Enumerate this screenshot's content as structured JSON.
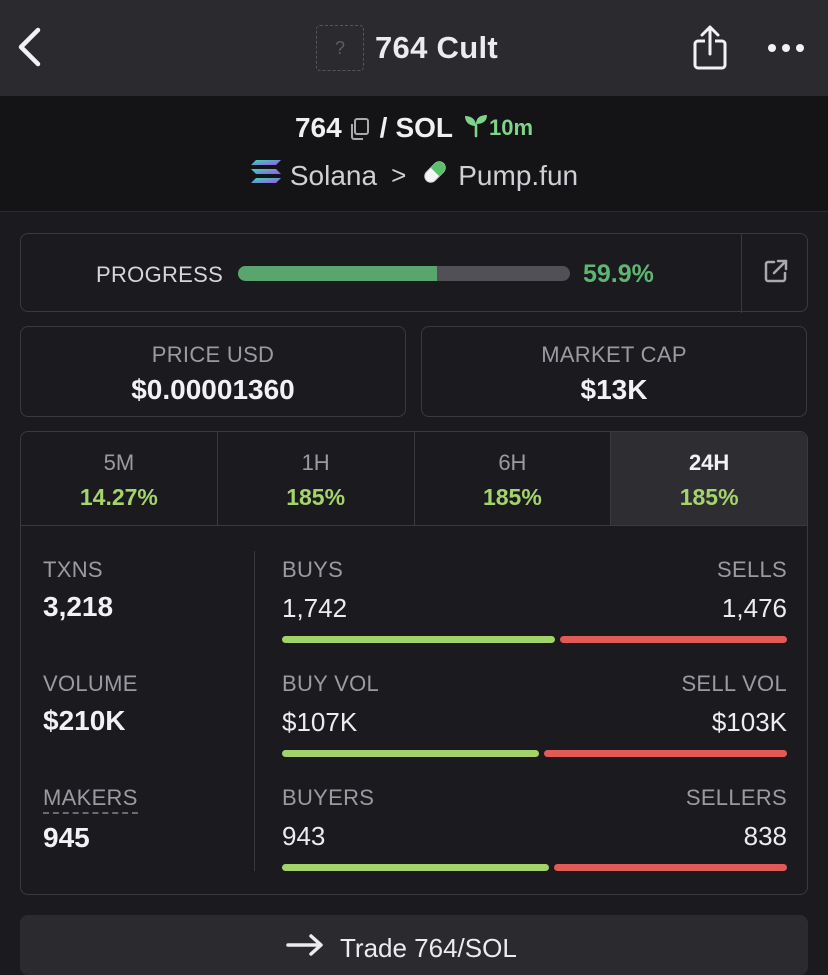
{
  "header": {
    "title": "764 Cult",
    "token_placeholder": "?",
    "icons": {
      "back": "chevron-left-icon",
      "share": "share-icon",
      "more": "more-dots-icon"
    }
  },
  "pair": {
    "base": "764",
    "quote": "SOL",
    "separator": "/",
    "age": "10m",
    "chain": "Solana",
    "dex": "Pump.fun",
    "chevron": ">"
  },
  "progress": {
    "label": "PROGRESS",
    "value_text": "59.9%",
    "fraction": 0.599
  },
  "price": {
    "label": "PRICE USD",
    "value": "$0.00001360"
  },
  "market_cap": {
    "label": "MARKET CAP",
    "value": "$13K"
  },
  "tabs": [
    {
      "label": "5M",
      "value": "14.27%",
      "active": false
    },
    {
      "label": "1H",
      "value": "185%",
      "active": false
    },
    {
      "label": "6H",
      "value": "185%",
      "active": false
    },
    {
      "label": "24H",
      "value": "185%",
      "active": true
    }
  ],
  "stats": {
    "txns": {
      "label": "TXNS",
      "value": "3,218"
    },
    "volume": {
      "label": "VOLUME",
      "value": "$210K"
    },
    "makers": {
      "label": "MAKERS",
      "value": "945"
    },
    "buys_sells": {
      "left_label": "BUYS",
      "right_label": "SELLS",
      "left_value": "1,742",
      "right_value": "1,476",
      "left_fraction": 0.5413
    },
    "buy_sell_vol": {
      "left_label": "BUY VOL",
      "right_label": "SELL VOL",
      "left_value": "$107K",
      "right_value": "$103K",
      "left_fraction": 0.5095
    },
    "buyers_sellers": {
      "left_label": "BUYERS",
      "right_label": "SELLERS",
      "left_value": "943",
      "right_value": "838",
      "left_fraction": 0.5295
    }
  },
  "colors": {
    "positive": "#a5d36c",
    "progress": "#58a56d",
    "buy_bar": "#a4d26a",
    "sell_bar": "#e25a55",
    "age_green": "#7fd38a"
  },
  "trade": {
    "label": "Trade 764/SOL"
  }
}
